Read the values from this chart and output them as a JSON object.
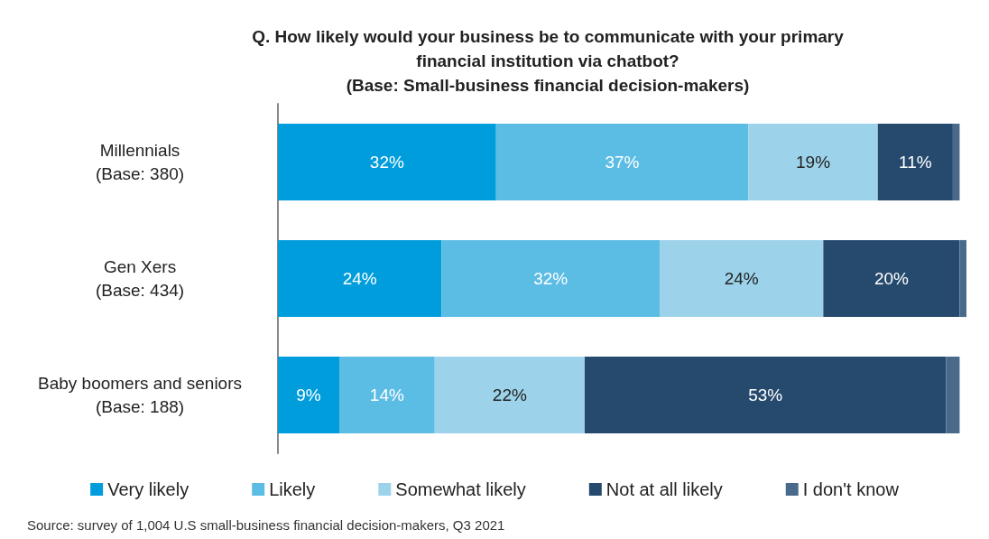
{
  "chart_data": {
    "type": "bar",
    "orientation": "horizontal",
    "stacked": true,
    "title": "Q. How likely would your business be to communicate with your primary\nfinancial institution via chatbot?\n(Base: Small-business financial decision-makers)",
    "categories": [
      "Millennials\n(Base: 380)",
      "Gen Xers\n(Base: 434)",
      "Baby boomers and seniors\n(Base: 188)"
    ],
    "series": [
      {
        "name": "Very likely",
        "color": "#009ddc",
        "values": [
          32,
          24,
          9
        ],
        "value_labels": [
          "32%",
          "24%",
          "9%"
        ]
      },
      {
        "name": "Likely",
        "color": "#5bbce4",
        "values": [
          37,
          32,
          14
        ],
        "value_labels": [
          "37%",
          "32%",
          "14%"
        ]
      },
      {
        "name": "Somewhat likely",
        "color": "#9dd3ea",
        "values": [
          19,
          24,
          22
        ],
        "value_labels": [
          "19%",
          "24%",
          "22%"
        ]
      },
      {
        "name": "Not at all likely",
        "color": "#254a6e",
        "values": [
          11,
          20,
          53
        ],
        "value_labels": [
          "11%",
          "20%",
          "53%"
        ]
      },
      {
        "name": "I don't know",
        "color": "#4a6a8c",
        "values": [
          1,
          1,
          2
        ],
        "value_labels": [
          null,
          null,
          null
        ]
      }
    ],
    "legend": "bottom",
    "annotations": [
      "Source: survey of 1,004 U.S small-business financial decision-makers, Q3 2021"
    ]
  }
}
